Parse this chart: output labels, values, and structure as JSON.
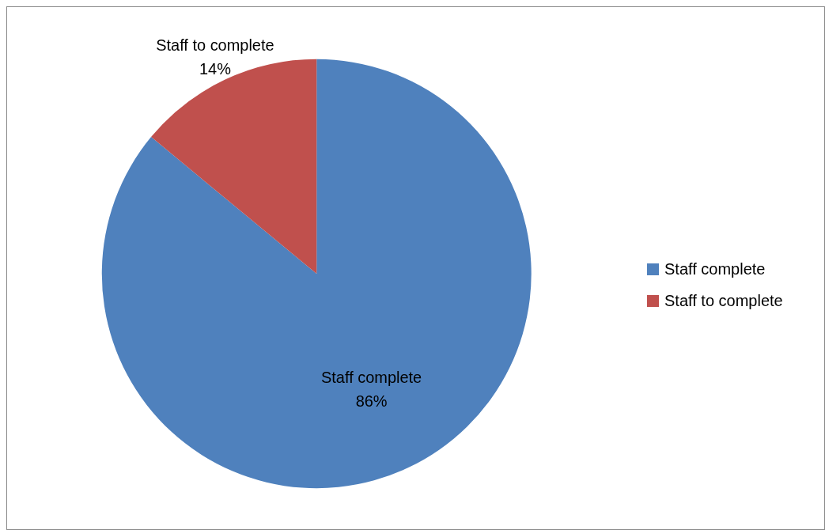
{
  "chart_data": {
    "type": "pie",
    "categories": [
      "Staff complete",
      "Staff to complete"
    ],
    "values": [
      86,
      14
    ],
    "colors": [
      "#4f81bd",
      "#c0504d"
    ],
    "value_labels": [
      "86%",
      "14%"
    ],
    "legend": "right"
  }
}
